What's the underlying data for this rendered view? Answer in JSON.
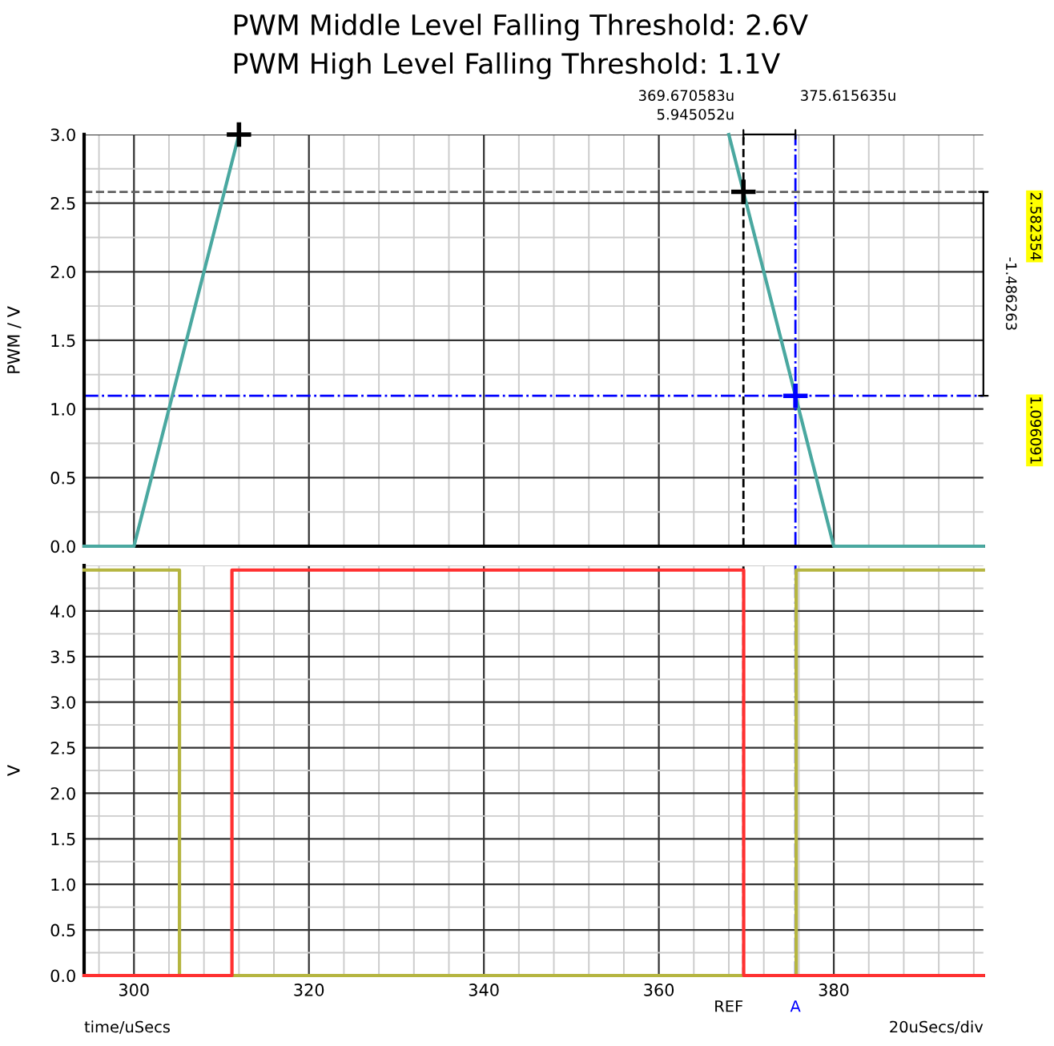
{
  "chart_data": [
    {
      "type": "line",
      "title": "PWM Middle Level Falling Threshold: 2.6V",
      "subtitle": "PWM High Level Falling Threshold: 1.1V",
      "ylabel": "PWM / V",
      "x": [
        294.3,
        300,
        312,
        340,
        368,
        380,
        397.1
      ],
      "xlim": [
        294.3,
        397.1
      ],
      "xticks": [
        300,
        320,
        340,
        360,
        380
      ],
      "ylim": [
        0,
        3.0
      ],
      "yticks": [
        {
          "value": 0,
          "label": "0.0"
        },
        0.5,
        {
          "value": 1,
          "label": "1.0"
        },
        1.5,
        {
          "value": 2,
          "label": "2.0"
        },
        2.5,
        {
          "value": 3,
          "label": "3.0"
        }
      ],
      "tick_labels": "y",
      "grid": true,
      "series": [
        {
          "color": "#4aa8a0",
          "values": [
            0,
            0,
            3.0,
            null,
            3.0,
            0,
            0
          ]
        },
        {
          "type": "scatter",
          "color": "#000000",
          "marker": "cross",
          "x": [
            312,
            369.670583
          ],
          "values": [
            3.0,
            2.582354
          ]
        },
        {
          "type": "scatter",
          "color": "#0000ff",
          "marker": "cross",
          "x": [
            375.615635
          ],
          "values": [
            1.096091
          ]
        }
      ],
      "ref_lines": [
        {
          "axis": "x",
          "value": 369.670583,
          "color": "#000000",
          "line_style": "dashed"
        },
        {
          "axis": "x",
          "value": 375.615635,
          "color": "#0000ff",
          "line_style": "dashdot"
        },
        {
          "axis": "y",
          "value": 2.582354,
          "color": "#606060",
          "line_style": "dashed"
        },
        {
          "axis": "y",
          "value": 1.096091,
          "color": "#0000ff",
          "line_style": "dashdot"
        }
      ],
      "annotations": [
        "369.670583u",
        "375.615635u",
        "2.582354",
        "1.096091",
        "5.945052u",
        "-1.486263"
      ]
    },
    {
      "type": "step",
      "ylabel": "V",
      "xlim": [
        294.3,
        397.1
      ],
      "xticks": [
        300,
        320,
        340,
        360,
        380
      ],
      "ylim": [
        0,
        4.5
      ],
      "yticks": [
        {
          "value": 0,
          "label": "0.0"
        },
        0.5,
        {
          "value": 1,
          "label": "1.0"
        },
        1.5,
        {
          "value": 2,
          "label": "2.0"
        },
        2.5,
        {
          "value": 3,
          "label": "3.0"
        },
        3.5,
        {
          "value": 4,
          "label": "4.0"
        }
      ],
      "grid": true,
      "series": [
        {
          "color": "#b5b540",
          "x": [
            294.3,
            305.2,
            375.7,
            397.1
          ],
          "values": [
            4.45,
            0,
            4.45,
            4.45
          ]
        },
        {
          "color": "#ff3030",
          "x": [
            294.3,
            311.2,
            369.7,
            397.1
          ],
          "values": [
            0,
            4.45,
            0,
            0
          ]
        }
      ],
      "ref_lines": [
        {
          "axis": "x",
          "value": 369.670583,
          "color": "#000000",
          "line_style": "dashed",
          "label": "REF"
        },
        {
          "axis": "x",
          "value": 375.615635,
          "color": "#0000ff",
          "line_style": "dashdot",
          "label": "A"
        }
      ],
      "annotations": [
        "time/uSecs",
        "20uSecs/div"
      ]
    }
  ]
}
